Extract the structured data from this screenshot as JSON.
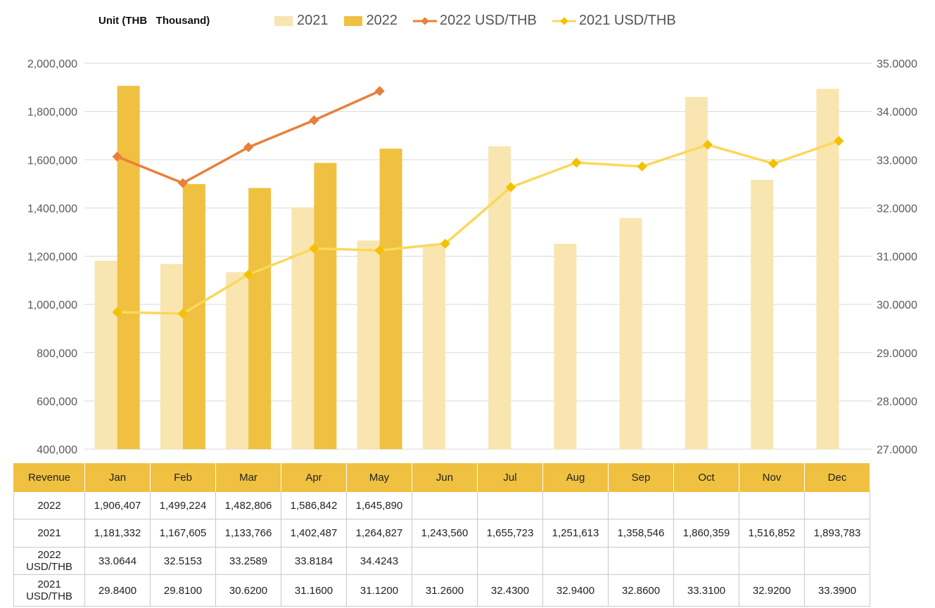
{
  "unit_label": "Unit (THB   Thousand)",
  "legend": [
    {
      "label": "2021",
      "kind": "bar",
      "color": "#f9e5b0"
    },
    {
      "label": "2022",
      "kind": "bar",
      "color": "#f0c040"
    },
    {
      "label": "2022 USD/THB",
      "kind": "line",
      "color": "#e8803a"
    },
    {
      "label": "2021 USD/THB",
      "kind": "line",
      "color": "#fbd85a"
    }
  ],
  "chart_data": {
    "type": "bar",
    "categories": [
      "Jan",
      "Feb",
      "Mar",
      "Apr",
      "May",
      "Jun",
      "Jul",
      "Aug",
      "Sep",
      "Oct",
      "Nov",
      "Dec"
    ],
    "y_left": {
      "range": [
        400000,
        2000000
      ],
      "ticks": [
        "400,000",
        "600,000",
        "800,000",
        "1,000,000",
        "1,200,000",
        "1,400,000",
        "1,600,000",
        "1,800,000",
        "2,000,000"
      ]
    },
    "y_right": {
      "range": [
        27,
        35
      ],
      "ticks": [
        "27.0000",
        "28.0000",
        "29.0000",
        "30.0000",
        "31.0000",
        "32.0000",
        "33.0000",
        "34.0000",
        "35.0000"
      ]
    },
    "grid": true,
    "legend_position": "top",
    "series": [
      {
        "name": "2021",
        "type": "bar",
        "axis": "left",
        "color": "#f9e5b0",
        "values": [
          1181332,
          1167605,
          1133766,
          1402487,
          1264827,
          1243560,
          1655723,
          1251613,
          1358546,
          1860359,
          1516852,
          1893783
        ]
      },
      {
        "name": "2022",
        "type": "bar",
        "axis": "left",
        "color": "#f0c040",
        "values": [
          1906407,
          1499224,
          1482806,
          1586842,
          1645890,
          null,
          null,
          null,
          null,
          null,
          null,
          null
        ]
      },
      {
        "name": "2022 USD/THB",
        "type": "line",
        "axis": "right",
        "color": "#e8803a",
        "values": [
          33.0644,
          32.5153,
          33.2589,
          33.8184,
          34.4243,
          null,
          null,
          null,
          null,
          null,
          null,
          null
        ]
      },
      {
        "name": "2021 USD/THB",
        "type": "line",
        "axis": "right",
        "color": "#fbd85a",
        "values": [
          29.84,
          29.81,
          30.62,
          31.16,
          31.12,
          31.26,
          32.43,
          32.94,
          32.86,
          33.31,
          32.92,
          33.39
        ]
      }
    ]
  },
  "table": {
    "header": [
      "Revenue",
      "Jan",
      "Feb",
      "Mar",
      "Apr",
      "May",
      "Jun",
      "Jul",
      "Aug",
      "Sep",
      "Oct",
      "Nov",
      "Dec"
    ],
    "rows": [
      [
        "2022",
        "1,906,407",
        "1,499,224",
        "1,482,806",
        "1,586,842",
        "1,645,890",
        "",
        "",
        "",
        "",
        "",
        "",
        ""
      ],
      [
        "2021",
        "1,181,332",
        "1,167,605",
        "1,133,766",
        "1,402,487",
        "1,264,827",
        "1,243,560",
        "1,655,723",
        "1,251,613",
        "1,358,546",
        "1,860,359",
        "1,516,852",
        "1,893,783"
      ],
      [
        "2022\nUSD/THB",
        "33.0644",
        "32.5153",
        "33.2589",
        "33.8184",
        "34.4243",
        "",
        "",
        "",
        "",
        "",
        "",
        ""
      ],
      [
        "2021\nUSD/THB",
        "29.8400",
        "29.8100",
        "30.6200",
        "31.1600",
        "31.1200",
        "31.2600",
        "32.4300",
        "32.9400",
        "32.8600",
        "33.3100",
        "32.9200",
        "33.3900"
      ]
    ]
  }
}
